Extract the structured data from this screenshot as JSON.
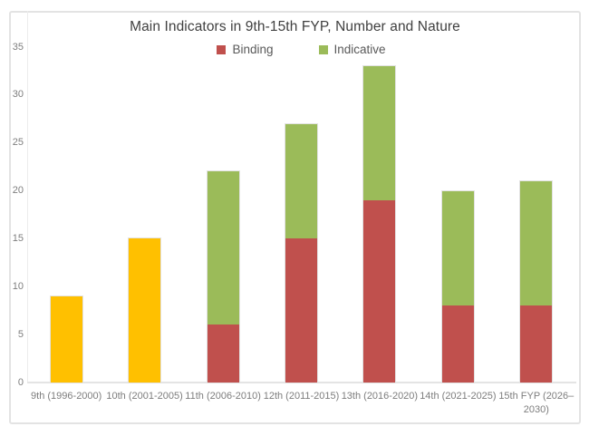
{
  "window": {
    "background_color": "#ffffff",
    "frame_border_color": "#e3e3e3"
  },
  "chart_data": {
    "type": "bar",
    "stacked": true,
    "title": "Main Indicators in 9th-15th FYP, Number and Nature",
    "categories": [
      "9th (1996-2000)",
      "10th (2001-2005)",
      "11th (2006-2010)",
      "12th (2011-2015)",
      "13th (2016-2020)",
      "14th (2021-2025)",
      "15th FYP (2026–2030)"
    ],
    "series": [
      {
        "name": "Binding",
        "color": "#c0504d",
        "in_legend": true,
        "values": [
          0,
          0,
          6,
          15,
          19,
          8,
          8
        ]
      },
      {
        "name": "Indicative",
        "color": "#9bbb59",
        "in_legend": true,
        "values": [
          0,
          0,
          16,
          12,
          14,
          12,
          13
        ]
      },
      {
        "name": "",
        "color": "#ffc000",
        "in_legend": false,
        "values": [
          9,
          15,
          0,
          0,
          0,
          0,
          0
        ]
      }
    ],
    "xlabel": "",
    "ylabel": "",
    "ylim": [
      0,
      35
    ],
    "yticks": [
      0,
      5,
      10,
      15,
      20,
      25,
      30,
      35
    ],
    "grid": false,
    "legend_position": "top-center",
    "title_color": "#404040",
    "legend_text_color": "#595959",
    "axis_label_color": "#7d7d7d",
    "axis_line_color": "#e4e4e4"
  }
}
